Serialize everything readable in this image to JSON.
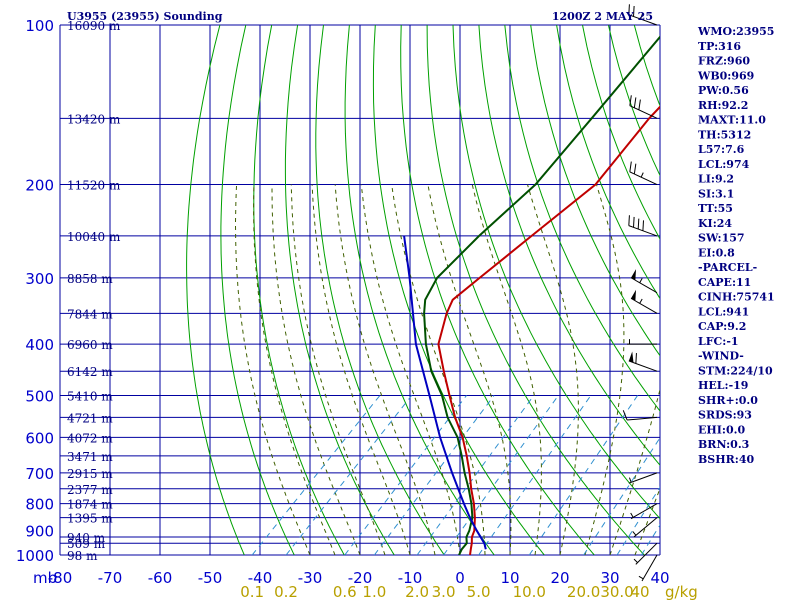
{
  "header": {
    "station": "U3955 (23955) Sounding",
    "time": "1200Z  2 MAY 25"
  },
  "indices": [
    "WMO:23955",
    "TP:316",
    "FRZ:960",
    "WB0:969",
    "PW:0.56",
    "RH:92.2",
    "MAXT:11.0",
    "TH:5312",
    "L57:7.6",
    "LCL:974",
    "LI:9.2",
    "SI:3.1",
    "TT:55",
    "KI:24",
    "SW:157",
    "EI:0.8",
    "-PARCEL-",
    "CAPE:11",
    "CINH:75741",
    "LCL:941",
    "CAP:9.2",
    "LFC:-1",
    "-WIND-",
    "STM:224/10",
    "HEL:-19",
    "SHR+:0.0",
    "SRDS:93",
    "EHI:0.0",
    "BRN:0.3",
    "BSHR:40"
  ],
  "colors": {
    "grid": "#0000a0",
    "dry_adiabat": "#00a000",
    "moist_adiabat": "#406000",
    "mixing_ratio": "#3090d0",
    "temperature": "#c00000",
    "dewpoint": "#005000",
    "parcel": "#0000c0",
    "wind": "#000000"
  },
  "chart_data": {
    "type": "line",
    "skew_t": true,
    "y_scale": "log-pressure",
    "ylim_mb": [
      1000,
      100
    ],
    "xlim_c": [
      -80,
      0
    ],
    "pressure_label_unit": "mb",
    "pressure_ticks": [
      1000,
      900,
      800,
      700,
      600,
      500,
      400,
      300,
      200,
      100
    ],
    "temperature_ticks": [
      -80,
      -70,
      -60,
      -50,
      -40,
      -30,
      -20,
      -10,
      0,
      10,
      20,
      30,
      40
    ],
    "temperature_tick_labels": [
      "-80",
      "-70",
      "-60",
      "-50",
      "-40",
      "-30",
      "-20",
      "-10",
      "0",
      "10",
      "20",
      "30",
      "40"
    ],
    "mixing_ratio_labels": [
      "0.1",
      "0.2",
      "0.6",
      "1.0",
      "2.0",
      "3.0",
      "5.0",
      "10.0",
      "20.0",
      "30.0",
      "40"
    ],
    "mixing_ratio_values": [
      0.1,
      0.2,
      0.6,
      1.0,
      2.0,
      3.0,
      5.0,
      10.0,
      20.0,
      30.0,
      40.0
    ],
    "mixing_ratio_unit": "g/kg",
    "heights": [
      {
        "p": 1000,
        "label": "98 m"
      },
      {
        "p": 950,
        "label": "509 m"
      },
      {
        "p": 925,
        "label": "940 m"
      },
      {
        "p": 850,
        "label": "1395 m"
      },
      {
        "p": 800,
        "label": "1874 m"
      },
      {
        "p": 750,
        "label": "2377 m"
      },
      {
        "p": 700,
        "label": "2915 m"
      },
      {
        "p": 650,
        "label": "3471 m"
      },
      {
        "p": 600,
        "label": "4072 m"
      },
      {
        "p": 550,
        "label": "4721 m"
      },
      {
        "p": 500,
        "label": "5410 m"
      },
      {
        "p": 450,
        "label": "6142 m"
      },
      {
        "p": 400,
        "label": "6960 m"
      },
      {
        "p": 350,
        "label": "7844 m"
      },
      {
        "p": 300,
        "label": "8858 m"
      },
      {
        "p": 250,
        "label": "10040 m"
      },
      {
        "p": 200,
        "label": "11520 m"
      },
      {
        "p": 150,
        "label": "13420 m"
      },
      {
        "p": 100,
        "label": "16090 m"
      }
    ],
    "series": [
      {
        "key": "temperature",
        "p": [
          1000,
          975,
          950,
          925,
          900,
          850,
          800,
          750,
          700,
          650,
          600,
          550,
          500,
          450,
          400,
          350,
          330,
          300,
          250,
          200,
          150,
          100
        ],
        "t": [
          2.0,
          1.0,
          0.0,
          -1.2,
          -2.0,
          -4.5,
          -7.5,
          -11.0,
          -14.5,
          -18.5,
          -23.0,
          -28.5,
          -34.0,
          -40.0,
          -46.5,
          -51.0,
          -52.5,
          -51.5,
          -49.5,
          -47.0,
          -49.5,
          -50.5
        ]
      },
      {
        "key": "dewpoint",
        "p": [
          1000,
          975,
          950,
          925,
          900,
          850,
          800,
          750,
          700,
          650,
          600,
          550,
          500,
          450,
          400,
          350,
          330,
          300,
          250,
          200,
          150,
          100
        ],
        "t": [
          -0.2,
          -0.8,
          -1.0,
          -2.3,
          -3.0,
          -5.0,
          -8.0,
          -11.5,
          -15.5,
          -19.5,
          -24.0,
          -30.0,
          -35.5,
          -42.5,
          -49.0,
          -55.5,
          -58.0,
          -60.0,
          -60.0,
          -59.0,
          -61.0,
          -64.0
        ]
      },
      {
        "key": "parcel",
        "p": [
          975,
          950,
          900,
          850,
          800,
          700,
          600,
          500,
          400,
          300,
          250
        ],
        "t": [
          4.0,
          2.5,
          -1.5,
          -5.5,
          -9.5,
          -18.0,
          -27.5,
          -38.0,
          -51.0,
          -65.5,
          -75.0
        ]
      }
    ],
    "winds": [
      {
        "p": 1000,
        "dir": 210,
        "kt": 5
      },
      {
        "p": 950,
        "dir": 225,
        "kt": 5
      },
      {
        "p": 850,
        "dir": 230,
        "kt": 5
      },
      {
        "p": 800,
        "dir": 240,
        "kt": 5
      },
      {
        "p": 700,
        "dir": 250,
        "kt": 5
      },
      {
        "p": 550,
        "dir": 265,
        "kt": 10
      },
      {
        "p": 450,
        "dir": 290,
        "kt": 60
      },
      {
        "p": 400,
        "dir": 270,
        "kt": 5
      },
      {
        "p": 350,
        "dir": 300,
        "kt": 55
      },
      {
        "p": 320,
        "dir": 300,
        "kt": 55
      },
      {
        "p": 250,
        "dir": 290,
        "kt": 40
      },
      {
        "p": 200,
        "dir": 295,
        "kt": 25
      },
      {
        "p": 150,
        "dir": 295,
        "kt": 30
      },
      {
        "p": 100,
        "dir": 290,
        "kt": 25
      }
    ]
  }
}
